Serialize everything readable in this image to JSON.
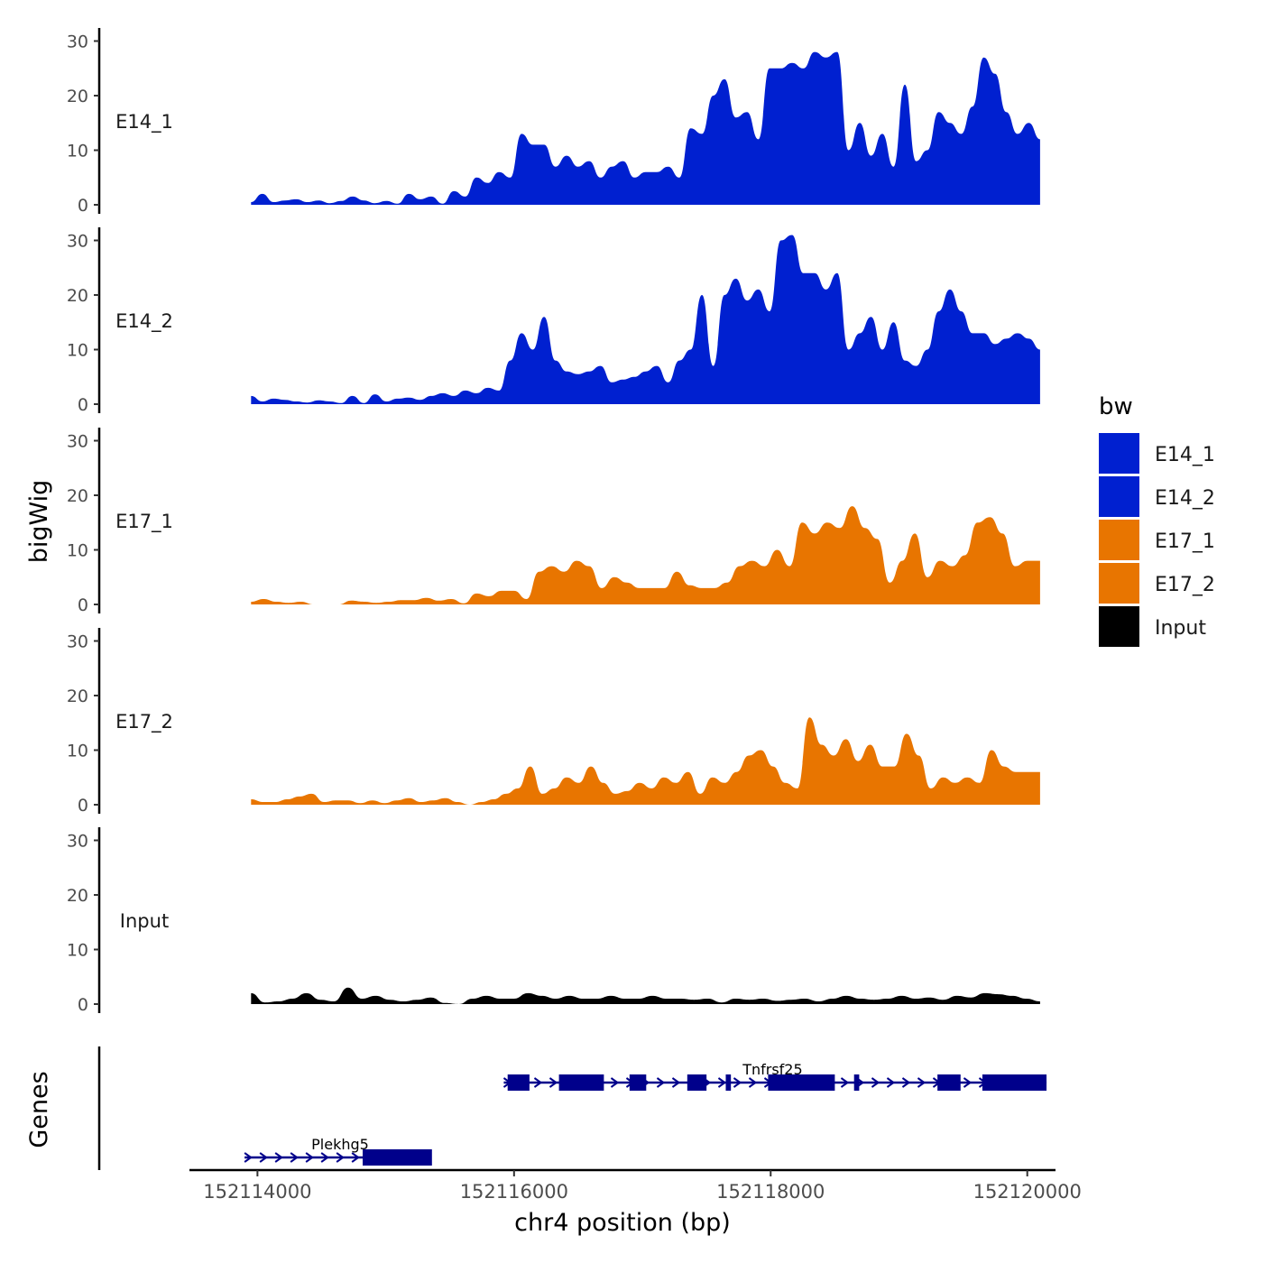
{
  "chart_data": {
    "type": "area",
    "title": "",
    "xlabel": "chr4 position (bp)",
    "ylabel": "bigWig",
    "genes_label": "Genes",
    "xlim": [
      152113470,
      152120220
    ],
    "ylim": [
      0,
      32
    ],
    "y_ticks": [
      0,
      10,
      20,
      30
    ],
    "x_ticks": [
      152114000,
      152116000,
      152118000,
      152120000
    ],
    "x_tick_labels": [
      "152114000",
      "152116000",
      "152118000",
      "152120000"
    ],
    "track_start": 152113950,
    "track_end": 152120100,
    "colors": {
      "blue": "#0020d0",
      "orange": "#e87500",
      "black": "#000000",
      "gene": "#00008b"
    },
    "legend": {
      "title": "bw",
      "entries": [
        {
          "label": "E14_1",
          "color": "#0020d0"
        },
        {
          "label": "E14_2",
          "color": "#0020d0"
        },
        {
          "label": "E17_1",
          "color": "#e87500"
        },
        {
          "label": "E17_2",
          "color": "#e87500"
        },
        {
          "label": "Input",
          "color": "#000000"
        }
      ]
    },
    "series": [
      {
        "name": "E14_1",
        "color": "#0020d0",
        "values": [
          0.5,
          2,
          0.5,
          0.8,
          1,
          0.5,
          0.8,
          0.3,
          0.7,
          1.5,
          0.8,
          0.3,
          0.7,
          0.2,
          2,
          1,
          1.5,
          0.2,
          2.5,
          1.5,
          5,
          4,
          6,
          5,
          13,
          11,
          11,
          7,
          9,
          7,
          8,
          5,
          7,
          8,
          5,
          6,
          6,
          7,
          5,
          14,
          13,
          20,
          23,
          16,
          17,
          12,
          25,
          25,
          26,
          25,
          28,
          27,
          28,
          10,
          15,
          9,
          13,
          7,
          22,
          8,
          10,
          17,
          15,
          13,
          18,
          27,
          24,
          17,
          13,
          15,
          12
        ]
      },
      {
        "name": "E14_2",
        "color": "#0020d0",
        "values": [
          1.5,
          0.5,
          1,
          0.8,
          0.5,
          0.3,
          0.7,
          0.5,
          0.2,
          1.5,
          0.2,
          1.8,
          0.5,
          1,
          1.2,
          0.8,
          1.5,
          2,
          1.5,
          2.5,
          2,
          3,
          2.5,
          8,
          13,
          10,
          16,
          8,
          6,
          5.5,
          6,
          7,
          4,
          4.5,
          5,
          6,
          7,
          4,
          8,
          10,
          20,
          7,
          20,
          23,
          19,
          21,
          17,
          30,
          31,
          24,
          24,
          21,
          24,
          10,
          13,
          16,
          10,
          15,
          8,
          7,
          10,
          17,
          21,
          17,
          13,
          13,
          11,
          12,
          13,
          12,
          10
        ]
      },
      {
        "name": "E17_1",
        "color": "#e87500",
        "values": [
          0.5,
          1,
          0.5,
          0.3,
          0.5,
          0,
          0,
          0,
          0.7,
          0.5,
          0.3,
          0.5,
          0.8,
          0.8,
          1.2,
          0.7,
          1,
          0.2,
          2,
          1.5,
          2.5,
          2.5,
          1,
          6,
          7,
          6,
          8,
          7,
          3,
          5,
          4,
          3,
          3,
          3,
          6,
          3.5,
          3,
          3,
          4,
          7,
          8,
          7,
          10,
          7,
          15,
          13,
          15,
          14,
          18,
          14,
          12,
          4,
          8,
          13,
          5,
          8,
          7,
          9,
          15,
          16,
          13,
          7,
          8,
          8
        ]
      },
      {
        "name": "E17_2",
        "color": "#e87500",
        "values": [
          1,
          0.5,
          0.5,
          1,
          1.5,
          2,
          0.5,
          0.8,
          0.8,
          0.3,
          0.8,
          0.3,
          0.8,
          1.2,
          0.5,
          0.8,
          1.2,
          0.5,
          0,
          0.5,
          1,
          2,
          3,
          7,
          2,
          3,
          5,
          4,
          7,
          4,
          2,
          2.5,
          4,
          3,
          5,
          4,
          6,
          2,
          5,
          4,
          6,
          9,
          10,
          7,
          4,
          3,
          16,
          11,
          9,
          12,
          8,
          11,
          7,
          7,
          13,
          9,
          3,
          5,
          4,
          5,
          4,
          10,
          7,
          6,
          6,
          6
        ]
      },
      {
        "name": "Input",
        "color": "#000000",
        "values": [
          2,
          0.3,
          0.5,
          1,
          2,
          0.8,
          0.5,
          3,
          1,
          1.5,
          0.8,
          0.5,
          0.8,
          1.2,
          0.2,
          0,
          1,
          1.5,
          1,
          1,
          2,
          1.5,
          1,
          1.5,
          1,
          1,
          1.5,
          1,
          1,
          1.5,
          1,
          1,
          0.8,
          1,
          0.3,
          1,
          0.8,
          1,
          0.6,
          0.8,
          1,
          0.5,
          1,
          1.5,
          1,
          0.8,
          1,
          1.5,
          1,
          1.2,
          0.8,
          1.5,
          1.2,
          2,
          1.8,
          1.5,
          1,
          0.5
        ]
      }
    ],
    "genes": [
      {
        "name": "Tnfrsf25",
        "start": 152115920,
        "end": 152120150,
        "strand": "+",
        "exons": [
          [
            152115950,
            152116120
          ],
          [
            152116350,
            152116700
          ],
          [
            152116900,
            152117030
          ],
          [
            152117350,
            152117500
          ],
          [
            152117650,
            152117690
          ],
          [
            152117980,
            152118500
          ],
          [
            152118650,
            152118690
          ],
          [
            152119300,
            152119480
          ],
          [
            152119650,
            152120150
          ]
        ]
      },
      {
        "name": "Plekhg5",
        "start": 152113900,
        "end": 152115350,
        "strand": "+",
        "exons": [
          [
            152114820,
            152115360
          ]
        ]
      }
    ]
  }
}
